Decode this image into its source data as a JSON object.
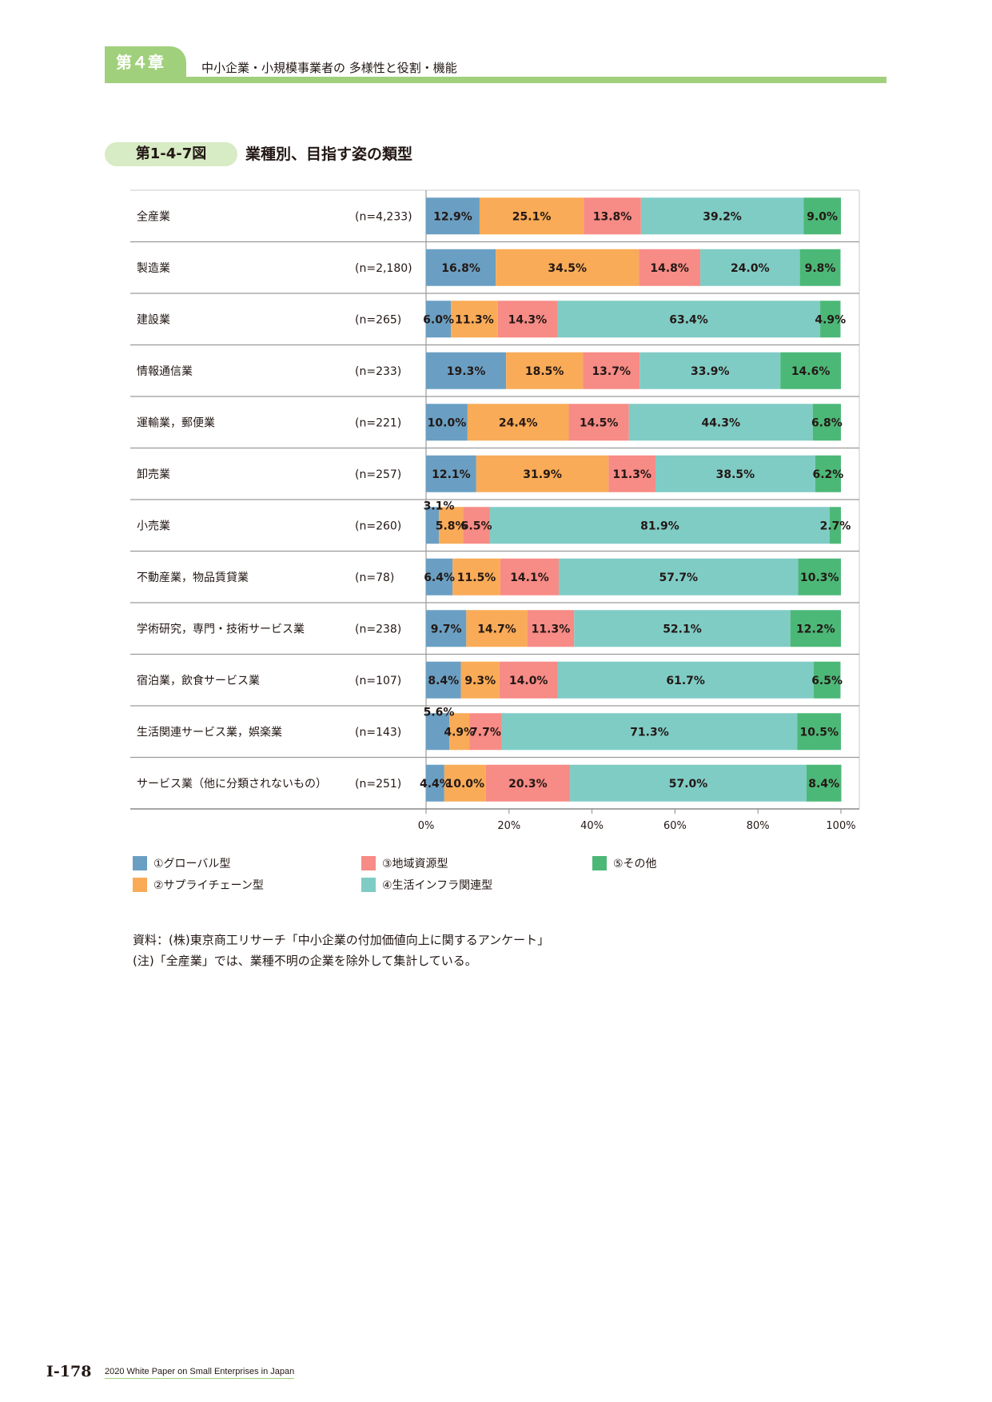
{
  "header": {
    "chapter_label": "第４章",
    "chapter_title": "中小企業・小規模事業者の 多様性と役割・機能"
  },
  "figure": {
    "number": "第1-4-7図",
    "title": "業種別、目指す姿の類型"
  },
  "colors": {
    "global": "#6a9fc3",
    "supply": "#f9ab57",
    "regional": "#f78b86",
    "infra": "#7fccc5",
    "other": "#4cb878",
    "header_green": "#a0d07c"
  },
  "chart_data": {
    "type": "bar",
    "orientation": "horizontal",
    "stacked": true,
    "percent": true,
    "categories": [
      "全産業",
      "製造業",
      "建設業",
      "情報通信業",
      "運輸業，郵便業",
      "卸売業",
      "小売業",
      "不動産業，物品賃貸業",
      "学術研究，専門・技術サービス業",
      "宿泊業，飲食サービス業",
      "生活関連サービス業，娯楽業",
      "サービス業（他に分類されないもの）"
    ],
    "sample_sizes": [
      "(n=4,233)",
      "(n=2,180)",
      "(n=265)",
      "(n=233)",
      "(n=221)",
      "(n=257)",
      "(n=260)",
      "(n=78)",
      "(n=238)",
      "(n=107)",
      "(n=143)",
      "(n=251)"
    ],
    "series": [
      {
        "name": "①グローバル型",
        "values": [
          12.9,
          16.8,
          6.0,
          19.3,
          10.0,
          12.1,
          3.1,
          6.4,
          9.7,
          8.4,
          5.6,
          4.4
        ]
      },
      {
        "name": "②サプライチェーン型",
        "values": [
          25.1,
          34.5,
          11.3,
          18.5,
          24.4,
          31.9,
          5.8,
          11.5,
          14.7,
          9.3,
          4.9,
          10.0
        ]
      },
      {
        "name": "③地域資源型",
        "values": [
          13.8,
          14.8,
          14.3,
          13.7,
          14.5,
          11.3,
          6.5,
          14.1,
          11.3,
          14.0,
          7.7,
          20.3
        ]
      },
      {
        "name": "④生活インフラ関連型",
        "values": [
          39.2,
          24.0,
          63.4,
          33.9,
          44.3,
          38.5,
          81.9,
          57.7,
          52.1,
          61.7,
          71.3,
          57.0
        ]
      },
      {
        "name": "⑤その他",
        "values": [
          9.0,
          9.8,
          4.9,
          14.6,
          6.8,
          6.2,
          2.7,
          10.3,
          12.2,
          6.5,
          10.5,
          8.4
        ]
      }
    ],
    "xlim": [
      0,
      100
    ],
    "xticks": [
      "0%",
      "20%",
      "40%",
      "60%",
      "80%",
      "100%"
    ],
    "legend_position": "bottom"
  },
  "source": {
    "line1": "資料：(株)東京商工リサーチ「中小企業の付加価値向上に関するアンケート」",
    "line2": "(注)「全産業」では、業種不明の企業を除外して集計している。"
  },
  "footer": {
    "page": "Ⅰ-178",
    "publication": "2020 White Paper on Small Enterprises in Japan"
  }
}
